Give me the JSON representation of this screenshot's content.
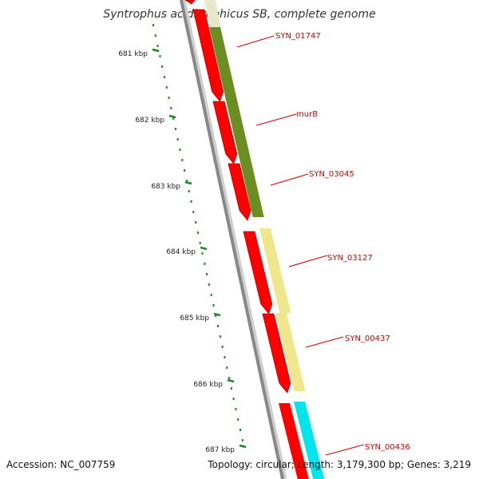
{
  "title": "Syntrophus aciditrophicus SB, complete genome",
  "footer": {
    "accession": "Accession: NC_007759",
    "summary": "Topology: circular; Length: 3,179,300 bp; Genes: 3,219"
  },
  "ruler": {
    "ticks": [
      {
        "label": "681 kbp"
      },
      {
        "label": "682 kbp"
      },
      {
        "label": "683 kbp"
      },
      {
        "label": "684 kbp"
      },
      {
        "label": "685 kbp"
      },
      {
        "label": "686 kbp"
      },
      {
        "label": "687 kbp"
      }
    ]
  },
  "gene_labels": [
    "SYN_01747",
    "murB",
    "SYN_03045",
    "SYN_03127",
    "SYN_00437",
    "SYN_00436"
  ],
  "colors": {
    "cds": "#ff0000",
    "cds_dark": "#b00000",
    "backbone": "#888888",
    "ruler": "#1a8a1a",
    "olive": "#6b8e23",
    "khaki": "#f0e68c",
    "cyan": "#00e5ee",
    "pale": "#e8e8cc",
    "label": "#cc0000"
  }
}
